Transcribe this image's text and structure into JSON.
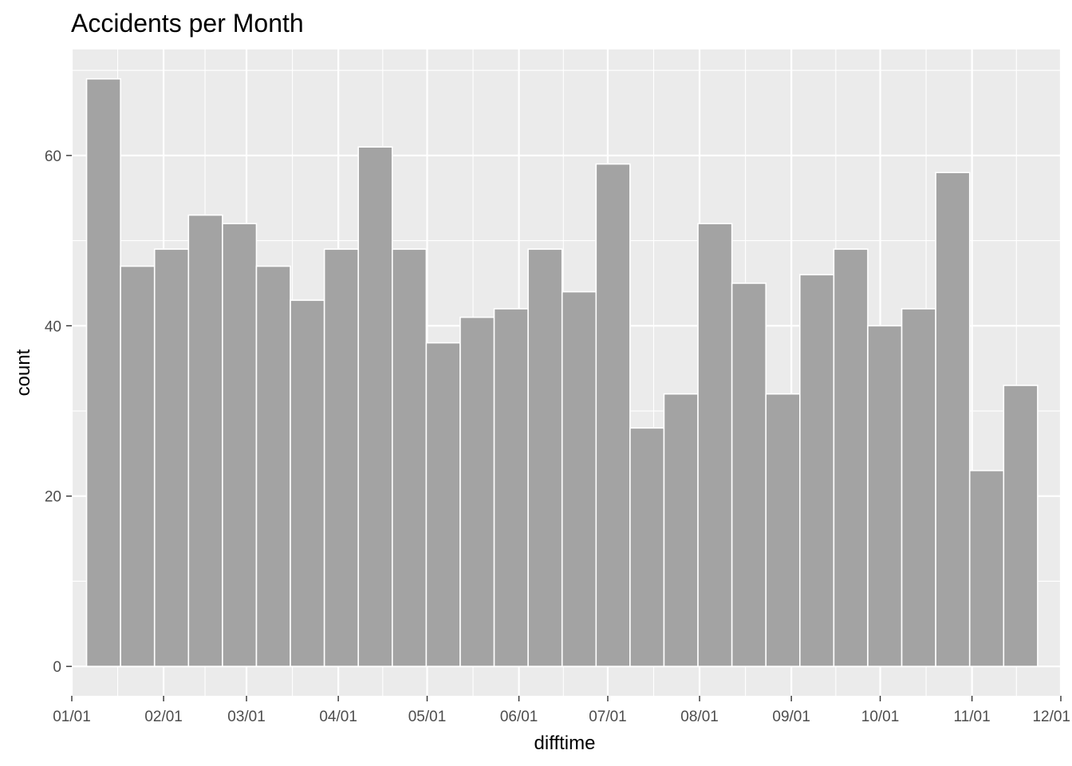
{
  "chart_data": {
    "type": "bar",
    "title": "Accidents per Month",
    "xlabel": "difftime",
    "ylabel": "count",
    "x_tick_labels": [
      "01/01",
      "02/01",
      "03/01",
      "04/01",
      "05/01",
      "06/01",
      "07/01",
      "08/01",
      "09/01",
      "10/01",
      "11/01",
      "12/01"
    ],
    "y_tick_labels": [
      "0",
      "20",
      "40",
      "60"
    ],
    "y_ticks": [
      0,
      20,
      40,
      60
    ],
    "ylim": [
      -3.45,
      72.45
    ],
    "bin_width_days": 11.47,
    "bins": [
      {
        "start": "01-06",
        "end": "01-17",
        "count": 69
      },
      {
        "start": "01-17",
        "end": "01-29",
        "count": 47
      },
      {
        "start": "01-29",
        "end": "02-09",
        "count": 49
      },
      {
        "start": "02-09",
        "end": "02-21",
        "count": 53
      },
      {
        "start": "02-21",
        "end": "03-04",
        "count": 52
      },
      {
        "start": "03-04",
        "end": "03-16",
        "count": 47
      },
      {
        "start": "03-16",
        "end": "03-27",
        "count": 43
      },
      {
        "start": "03-27",
        "end": "04-08",
        "count": 49
      },
      {
        "start": "04-08",
        "end": "04-19",
        "count": 61
      },
      {
        "start": "04-19",
        "end": "05-01",
        "count": 49
      },
      {
        "start": "05-01",
        "end": "05-12",
        "count": 38
      },
      {
        "start": "05-12",
        "end": "05-24",
        "count": 41
      },
      {
        "start": "05-24",
        "end": "06-04",
        "count": 42
      },
      {
        "start": "06-04",
        "end": "06-16",
        "count": 49
      },
      {
        "start": "06-16",
        "end": "06-27",
        "count": 44
      },
      {
        "start": "06-27",
        "end": "07-09",
        "count": 59
      },
      {
        "start": "07-09",
        "end": "07-20",
        "count": 28
      },
      {
        "start": "07-20",
        "end": "08-01",
        "count": 32
      },
      {
        "start": "08-01",
        "end": "08-12",
        "count": 52
      },
      {
        "start": "08-12",
        "end": "08-24",
        "count": 45
      },
      {
        "start": "08-24",
        "end": "09-04",
        "count": 32
      },
      {
        "start": "09-04",
        "end": "09-16",
        "count": 46
      },
      {
        "start": "09-16",
        "end": "09-27",
        "count": 49
      },
      {
        "start": "09-27",
        "end": "10-09",
        "count": 40
      },
      {
        "start": "10-09",
        "end": "10-20",
        "count": 42
      },
      {
        "start": "10-20",
        "end": "11-01",
        "count": 58
      },
      {
        "start": "11-01",
        "end": "11-12",
        "count": 23
      },
      {
        "start": "11-12",
        "end": "11-24",
        "count": 33
      }
    ],
    "grid": true,
    "colors": {
      "panel": "#ebebeb",
      "grid": "#ffffff",
      "bar_fill": "#a3a3a3",
      "bar_stroke": "#ffffff",
      "tick_text": "#4d4d4d",
      "tick_line": "#333333"
    }
  }
}
